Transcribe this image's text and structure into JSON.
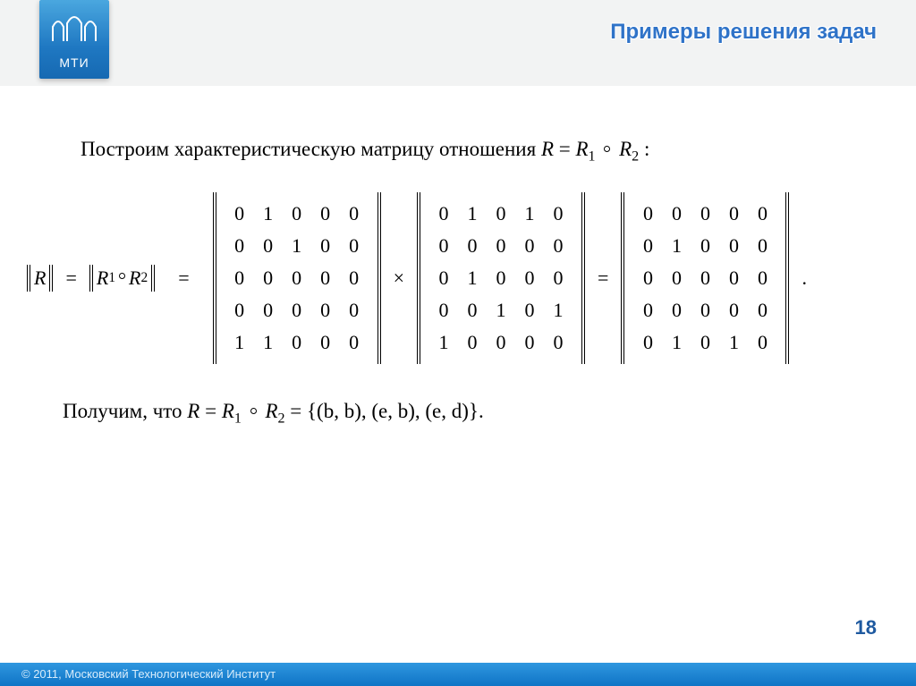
{
  "logo": {
    "label": "МТИ"
  },
  "slide_title": "Примеры решения  задач",
  "intro": {
    "prefix": "Построим характеристическую матрицу отношения ",
    "R": "R",
    "eq": " = ",
    "R1": "R",
    "sub1": "1",
    "R2": "R",
    "sub2": "2",
    "colon": " :"
  },
  "equation": {
    "lhs_R": "R",
    "eq1": "=",
    "mid_R1": "R",
    "mid_sub1": "1",
    "mid_R2": "R",
    "mid_sub2": "2",
    "eq2": "=",
    "times": "×",
    "eq3": "=",
    "period": ".",
    "matrix_A": [
      [
        0,
        1,
        0,
        0,
        0
      ],
      [
        0,
        0,
        1,
        0,
        0
      ],
      [
        0,
        0,
        0,
        0,
        0
      ],
      [
        0,
        0,
        0,
        0,
        0
      ],
      [
        1,
        1,
        0,
        0,
        0
      ]
    ],
    "matrix_B": [
      [
        0,
        1,
        0,
        1,
        0
      ],
      [
        0,
        0,
        0,
        0,
        0
      ],
      [
        0,
        1,
        0,
        0,
        0
      ],
      [
        0,
        0,
        1,
        0,
        1
      ],
      [
        1,
        0,
        0,
        0,
        0
      ]
    ],
    "matrix_C": [
      [
        0,
        0,
        0,
        0,
        0
      ],
      [
        0,
        1,
        0,
        0,
        0
      ],
      [
        0,
        0,
        0,
        0,
        0
      ],
      [
        0,
        0,
        0,
        0,
        0
      ],
      [
        0,
        1,
        0,
        1,
        0
      ]
    ]
  },
  "result": {
    "prefix": "Получим, что ",
    "R": "R",
    "eq": " = ",
    "R1": "R",
    "sub1": "1",
    "R2": "R",
    "sub2": "2",
    "set": " = {(b, b), (e, b), (e, d)}."
  },
  "page_number": "18",
  "footer": "© 2011, Московский Технологический Институт"
}
